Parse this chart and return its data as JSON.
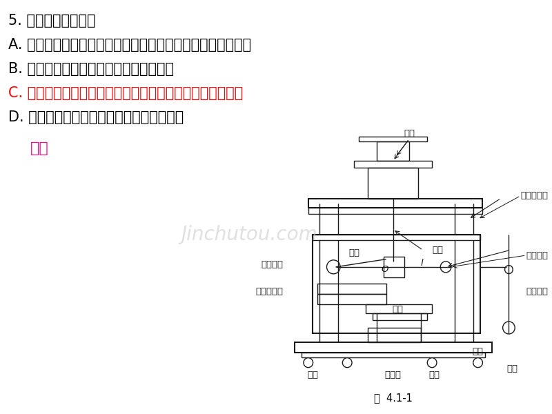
{
  "background_color": "#ffffff",
  "question_number": "5.",
  "question_text": "下列说法正确的是",
  "options": [
    {
      "label": "A.",
      "text": "牛顿最早通过理想斜面实验得出力不是维持物体运动的原因",
      "color": "#000000"
    },
    {
      "label": "B.",
      "text": "万有引力定律中的引力常量由牛顿测定",
      "color": "#000000"
    },
    {
      "label": "C.",
      "text": "库仓定律中的平方反比关系由库仓通过库仓扭称实验获得",
      "color": "#ff0000"
    },
    {
      "label": "D.",
      "text": "奥斯特首先发现了磁场对电流的作用规律",
      "color": "#000000"
    }
  ],
  "answer_label": "安培",
  "answer_color": "#ff0080",
  "watermark": "Jinchutou.com",
  "figure_label": "图  4.1-1"
}
